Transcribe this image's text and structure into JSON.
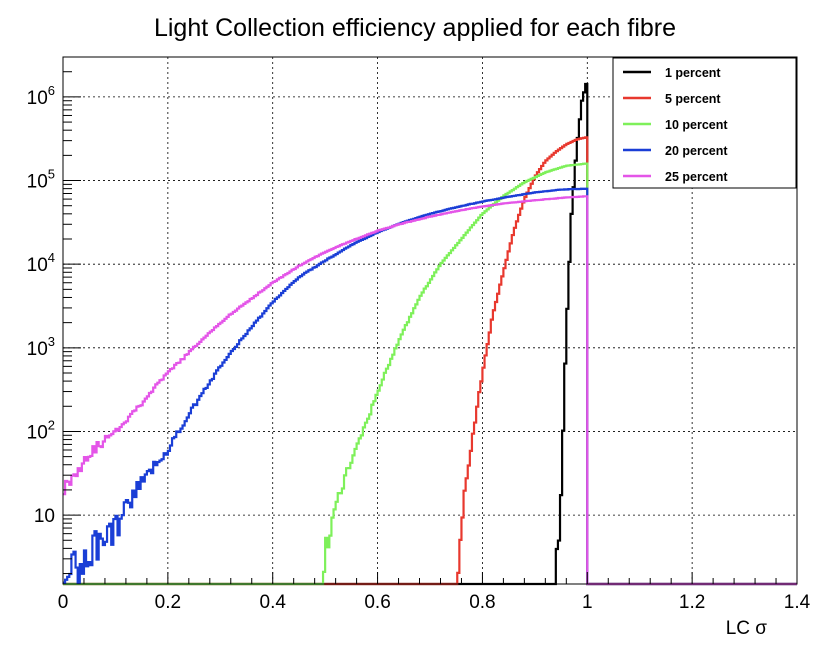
{
  "chart_data": {
    "type": "line",
    "title": "Light Collection efficiency applied for each fibre",
    "xlabel": "LC σ",
    "ylabel": "",
    "xlim": [
      0,
      1.4
    ],
    "ylim": [
      1.5,
      3000000
    ],
    "yscale": "log",
    "grid": true,
    "legend_position": "top-right",
    "x_ticks": [
      {
        "value": 0,
        "label": "0"
      },
      {
        "value": 0.2,
        "label": "0.2"
      },
      {
        "value": 0.4,
        "label": "0.4"
      },
      {
        "value": 0.6,
        "label": "0.6"
      },
      {
        "value": 0.8,
        "label": "0.8"
      },
      {
        "value": 1.0,
        "label": "1"
      },
      {
        "value": 1.2,
        "label": "1.2"
      },
      {
        "value": 1.4,
        "label": "1.4"
      }
    ],
    "y_ticks": [
      {
        "value": 10,
        "base": "10",
        "exp": ""
      },
      {
        "value": 100,
        "base": "10",
        "exp": "2"
      },
      {
        "value": 1000,
        "base": "10",
        "exp": "3"
      },
      {
        "value": 10000,
        "base": "10",
        "exp": "4"
      },
      {
        "value": 100000,
        "base": "10",
        "exp": "5"
      },
      {
        "value": 1000000,
        "base": "10",
        "exp": "6"
      }
    ],
    "series": [
      {
        "name": "1 percent",
        "color": "#000000",
        "x": [
          0,
          0.94,
          0.95,
          0.96,
          0.97,
          0.98,
          0.99,
          1.0
        ],
        "y": [
          1.5,
          1.5,
          20,
          1500,
          40000,
          250000,
          900000,
          1600000
        ]
      },
      {
        "name": "5 percent",
        "color": "#e8382e",
        "x": [
          0,
          0.75,
          0.76,
          0.78,
          0.8,
          0.82,
          0.84,
          0.86,
          0.88,
          0.9,
          0.92,
          0.94,
          0.96,
          0.98,
          1.0
        ],
        "y": [
          1.5,
          1.5,
          10,
          80,
          500,
          2500,
          8000,
          25000,
          60000,
          110000,
          170000,
          220000,
          270000,
          310000,
          330000
        ]
      },
      {
        "name": "10 percent",
        "color": "#7ef05a",
        "x": [
          0,
          0.49,
          0.5,
          0.53,
          0.56,
          0.6,
          0.64,
          0.68,
          0.72,
          0.76,
          0.8,
          0.84,
          0.88,
          0.92,
          0.96,
          1.0
        ],
        "y": [
          1.5,
          1.5,
          4,
          20,
          60,
          300,
          1200,
          4000,
          10000,
          20000,
          40000,
          65000,
          95000,
          125000,
          150000,
          160000
        ]
      },
      {
        "name": "20 percent",
        "color": "#1a3ed6",
        "x": [
          0,
          0.05,
          0.1,
          0.15,
          0.2,
          0.25,
          0.3,
          0.35,
          0.4,
          0.45,
          0.5,
          0.55,
          0.6,
          0.65,
          0.7,
          0.75,
          0.8,
          0.85,
          0.9,
          0.95,
          1.0
        ],
        "y": [
          1.5,
          4,
          7,
          25,
          60,
          200,
          600,
          1500,
          3500,
          7000,
          11000,
          17000,
          24000,
          32000,
          40000,
          48000,
          56000,
          64000,
          72000,
          78000,
          80000
        ]
      },
      {
        "name": "25 percent",
        "color": "#e455e8",
        "x": [
          0,
          0.05,
          0.1,
          0.15,
          0.2,
          0.25,
          0.3,
          0.35,
          0.4,
          0.45,
          0.5,
          0.55,
          0.6,
          0.65,
          0.7,
          0.75,
          0.8,
          0.85,
          0.9,
          0.95,
          1.0
        ],
        "y": [
          20,
          55,
          100,
          220,
          500,
          1000,
          2000,
          3500,
          6000,
          9500,
          14000,
          19000,
          25000,
          31000,
          37000,
          43000,
          49000,
          54000,
          58000,
          62000,
          65000
        ]
      }
    ]
  }
}
